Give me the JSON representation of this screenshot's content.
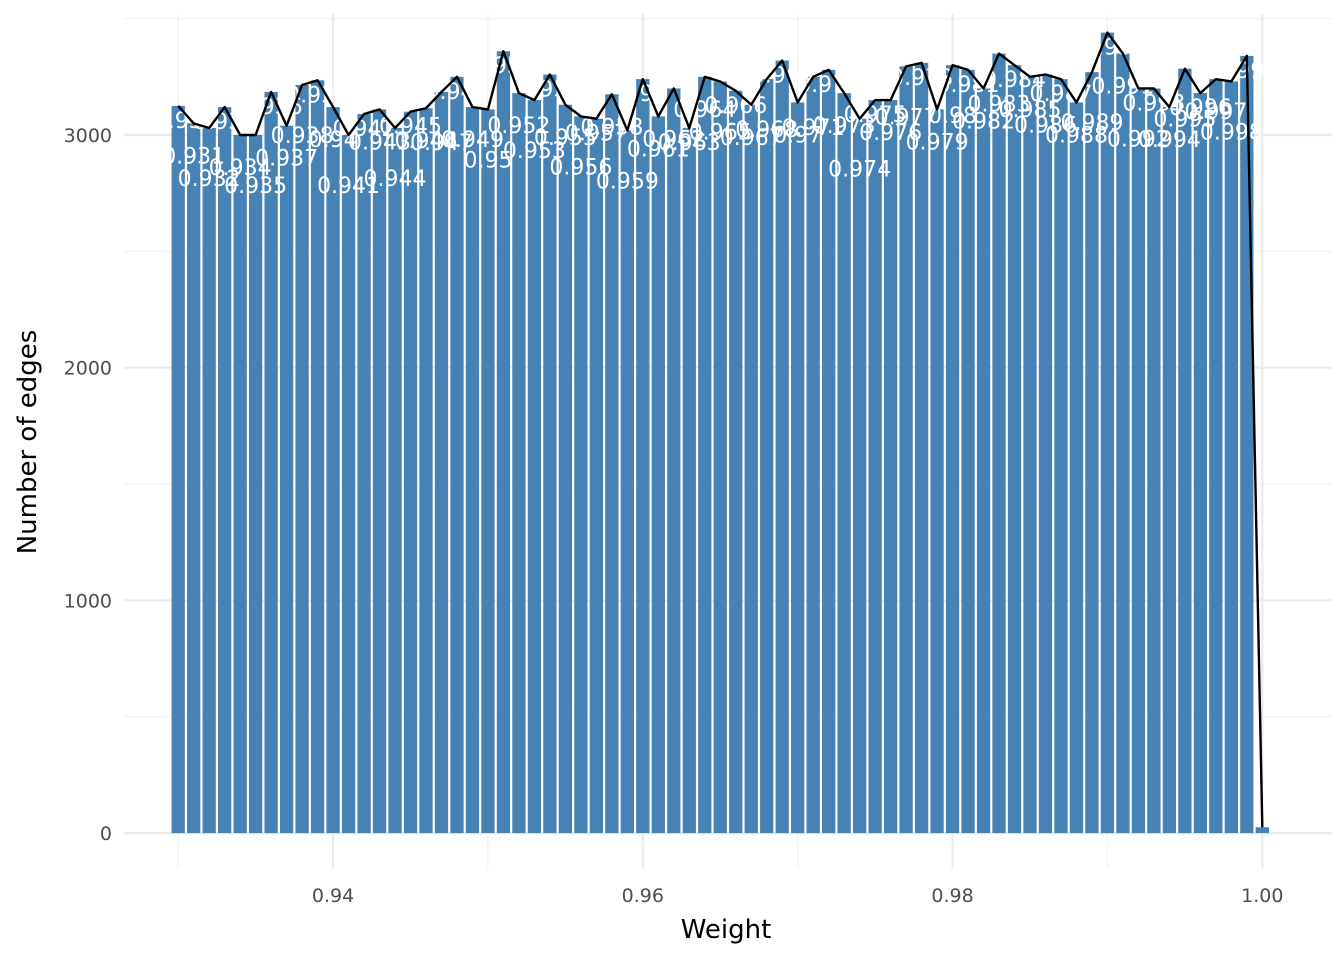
{
  "chart_data": {
    "type": "bar",
    "title": "",
    "xlabel": "Weight",
    "ylabel": "Number of edges",
    "xlim": [
      0.9265,
      1.0045
    ],
    "ylim": [
      -150,
      3520
    ],
    "x_ticks": [
      0.94,
      0.96,
      0.98,
      1.0
    ],
    "x_tick_labels": [
      "0.94",
      "0.96",
      "0.98",
      "1.00"
    ],
    "y_ticks": [
      0,
      1000,
      2000,
      3000
    ],
    "y_tick_labels": [
      "0",
      "1000",
      "2000",
      "3000"
    ],
    "grid": true,
    "bin_width": 0.001,
    "overlay_line": true,
    "bar_color": "#4682B4",
    "line_color": "#000000",
    "label_color": "#ffffff",
    "x": [
      0.93,
      0.931,
      0.932,
      0.933,
      0.934,
      0.935,
      0.936,
      0.937,
      0.938,
      0.939,
      0.94,
      0.941,
      0.942,
      0.943,
      0.944,
      0.945,
      0.946,
      0.947,
      0.948,
      0.949,
      0.95,
      0.951,
      0.952,
      0.953,
      0.954,
      0.955,
      0.956,
      0.957,
      0.958,
      0.959,
      0.96,
      0.961,
      0.962,
      0.963,
      0.964,
      0.965,
      0.966,
      0.967,
      0.968,
      0.969,
      0.97,
      0.971,
      0.972,
      0.973,
      0.974,
      0.975,
      0.976,
      0.977,
      0.978,
      0.979,
      0.98,
      0.981,
      0.982,
      0.983,
      0.984,
      0.985,
      0.986,
      0.987,
      0.988,
      0.989,
      0.99,
      0.991,
      0.992,
      0.993,
      0.994,
      0.995,
      0.996,
      0.997,
      0.998,
      0.999,
      1.0
    ],
    "values": [
      3125,
      3050,
      3030,
      3120,
      3000,
      3000,
      3185,
      3040,
      3215,
      3235,
      3120,
      3000,
      3090,
      3110,
      3030,
      3100,
      3115,
      3185,
      3250,
      3120,
      3110,
      3360,
      3180,
      3150,
      3260,
      3130,
      3080,
      3070,
      3175,
      3020,
      3240,
      3080,
      3200,
      3030,
      3250,
      3230,
      3190,
      3130,
      3240,
      3320,
      3140,
      3250,
      3280,
      3180,
      3070,
      3150,
      3150,
      3295,
      3310,
      3110,
      3300,
      3280,
      3200,
      3350,
      3300,
      3250,
      3260,
      3240,
      3140,
      3270,
      3440,
      3350,
      3200,
      3200,
      3120,
      3285,
      3180,
      3240,
      3230,
      3340,
      25
    ],
    "bar_labels": [
      "0.93",
      "0.931",
      "0.932",
      "0.933",
      "0.934",
      "0.935",
      "0.936",
      "0.937",
      "0.938",
      "0.939",
      "0.94",
      "0.941",
      "0.942",
      "0.943",
      "0.944",
      "0.945",
      "0.946",
      "0.947",
      "0.948",
      "0.949",
      "0.95",
      "0.951",
      "0.952",
      "0.953",
      "0.954",
      "0.955",
      "0.956",
      "0.957",
      "0.958",
      "0.959",
      "0.96",
      "0.961",
      "0.962",
      "0.963",
      "0.964",
      "0.965",
      "0.966",
      "0.967",
      "0.968",
      "0.969",
      "0.97",
      "0.971",
      "0.972",
      "0.973",
      "0.974",
      "0.975",
      "0.976",
      "0.977",
      "0.978",
      "0.979",
      "0.98",
      "0.981",
      "0.982",
      "0.983",
      "0.984",
      "0.985",
      "0.986",
      "0.987",
      "0.988",
      "0.989",
      "0.99",
      "0.991",
      "0.992",
      "0.993",
      "0.994",
      "0.995",
      "0.996",
      "0.997",
      "0.998",
      "0.999",
      "1"
    ]
  }
}
